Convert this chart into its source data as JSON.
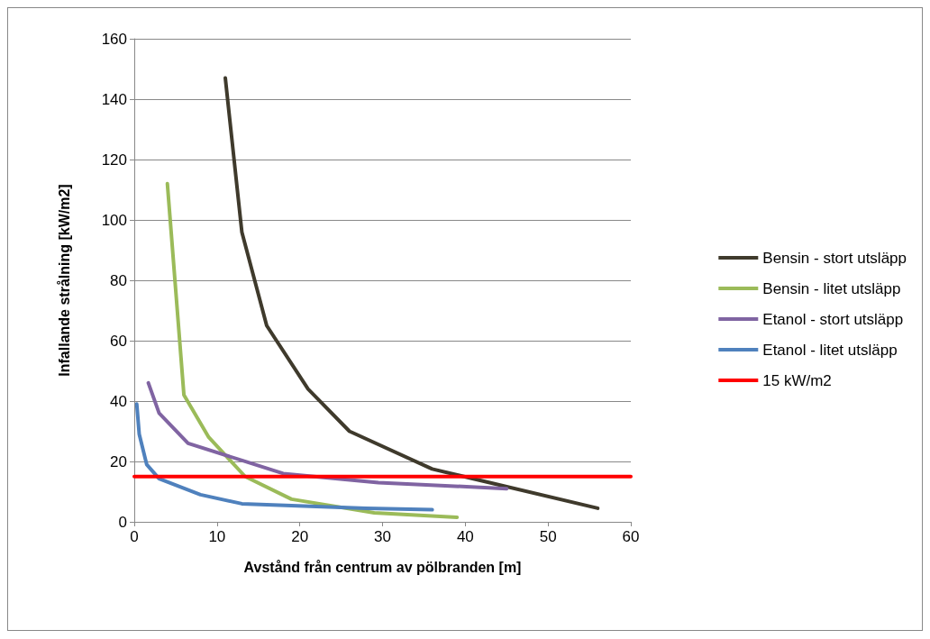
{
  "chart_data": {
    "type": "line",
    "xlabel": "Avstånd från centrum av pölbranden [m]",
    "ylabel": "Infallande strålning [kW/m2]",
    "xlim": [
      0,
      60
    ],
    "xticks": [
      0,
      10,
      20,
      30,
      40,
      50,
      60
    ],
    "ylim": [
      0,
      160
    ],
    "yticks": [
      0,
      20,
      40,
      60,
      80,
      100,
      120,
      140,
      160
    ],
    "grid": "y",
    "legend": "right",
    "marker": "none",
    "line_style": "solid",
    "series": [
      {
        "name": "Bensin - stort utsläpp",
        "color": "#3f3a2c",
        "x": [
          11,
          13,
          16,
          21,
          26,
          36,
          56
        ],
        "values": [
          147,
          96,
          65,
          44,
          30,
          17.5,
          4.5
        ]
      },
      {
        "name": "Bensin - litet utsläpp",
        "color": "#9bbb59",
        "x": [
          4,
          6,
          9,
          13.4,
          19,
          29,
          39
        ],
        "values": [
          112,
          42,
          28,
          15,
          7.5,
          3,
          1.5
        ]
      },
      {
        "name": "Etanol - stort utsläpp",
        "color": "#8064a2",
        "x": [
          1.7,
          3,
          6.5,
          18,
          29.5,
          45
        ],
        "values": [
          46,
          36,
          26,
          16,
          13,
          11
        ]
      },
      {
        "name": "Etanol - litet utsläpp",
        "color": "#4f81bd",
        "x": [
          0.3,
          0.6,
          1.5,
          3,
          8,
          13,
          28,
          36
        ],
        "values": [
          39,
          29,
          19,
          14.3,
          9,
          6,
          4.5,
          4
        ]
      },
      {
        "name": "15 kW/m2",
        "color": "#ff0000",
        "x": [
          0,
          60
        ],
        "values": [
          15,
          15
        ]
      }
    ]
  }
}
